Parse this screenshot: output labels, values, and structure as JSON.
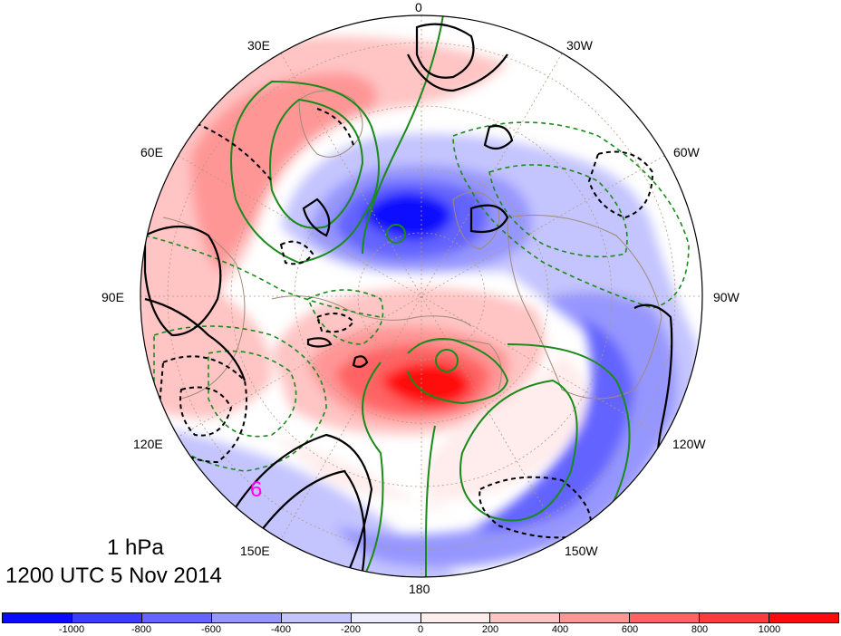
{
  "map": {
    "level": "1 hPa",
    "valid_time": "1200 UTC 5 Nov 2014",
    "projection": "north-polar-stereographic",
    "center_lon_bottom": "180",
    "longitude_labels": {
      "lon_0": "0",
      "lon_30w": "30W",
      "lon_60w": "60W",
      "lon_90w": "90W",
      "lon_120w": "120W",
      "lon_150w": "150W",
      "lon_180": "180",
      "lon_150e": "150E",
      "lon_120e": "120E",
      "lon_90e": "90E",
      "lon_60e": "60E",
      "lon_30e": "30E"
    },
    "symbol": "6",
    "symbol_color": "#ff00ff"
  },
  "colorbar": {
    "tick_labels": [
      "-1000",
      "-800",
      "-600",
      "-400",
      "-200",
      "0",
      "200",
      "400",
      "600",
      "800",
      "1000"
    ],
    "colors": [
      "#0a0aff",
      "#3c3cff",
      "#6464ff",
      "#9696ff",
      "#c4c4ff",
      "#ececff",
      "#ffecec",
      "#ffc4c4",
      "#ff9696",
      "#ff6464",
      "#ff3c3c",
      "#ff0a0a"
    ]
  },
  "colors": {
    "anomaly_positive_strong": "#ff0a0a",
    "anomaly_negative_strong": "#0a0aff",
    "contour_black": "#000000",
    "contour_green": "#1a8a1a",
    "coastline": "#a08a78",
    "grid": "#b09a80"
  }
}
